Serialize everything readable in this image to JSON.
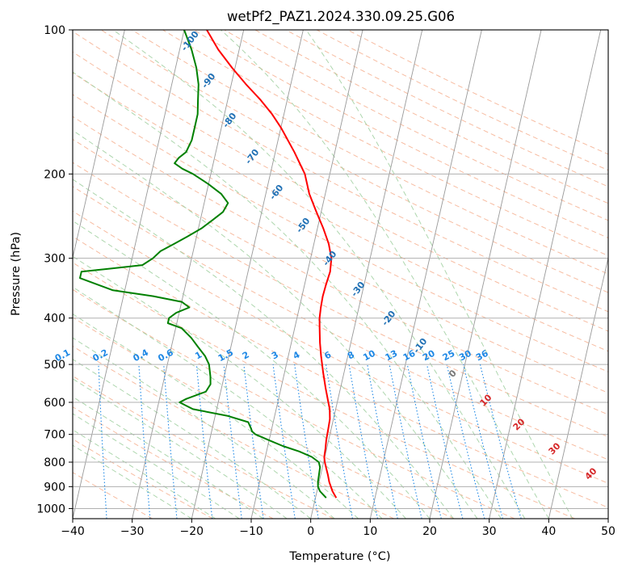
{
  "chart_data": {
    "type": "skew-t",
    "title": "wetPf2_PAZ1.2024.330.09.25.G06",
    "xlabel": "Temperature (°C)",
    "ylabel": "Pressure (hPa)",
    "xlim": [
      -40,
      50
    ],
    "ylim": [
      1050,
      100
    ],
    "y_scale": "log",
    "x_ticks": [
      -40,
      -30,
      -20,
      -10,
      0,
      10,
      20,
      30,
      40,
      50
    ],
    "y_ticks": [
      1000,
      900,
      800,
      700,
      600,
      500,
      400,
      300,
      200,
      100
    ],
    "grid": true,
    "colors": {
      "temperature": "#ff0000",
      "dewpoint": "#008000",
      "dry_adiabat": "#f4a582",
      "moist_adiabat": "#9fcf9f",
      "mixing_ratio": "#1e88e5",
      "isotherm": "#999999"
    },
    "temperature_profile": [
      {
        "p": 950,
        "t": 3.5
      },
      {
        "p": 920,
        "t": 2.6
      },
      {
        "p": 880,
        "t": 1.7
      },
      {
        "p": 850,
        "t": 1.2
      },
      {
        "p": 820,
        "t": 0.6
      },
      {
        "p": 800,
        "t": 0.2
      },
      {
        "p": 780,
        "t": -0.1
      },
      {
        "p": 750,
        "t": -0.2
      },
      {
        "p": 720,
        "t": -0.4
      },
      {
        "p": 680,
        "t": -0.5
      },
      {
        "p": 650,
        "t": -0.6
      },
      {
        "p": 620,
        "t": -1.0
      },
      {
        "p": 600,
        "t": -1.5
      },
      {
        "p": 560,
        "t": -2.5
      },
      {
        "p": 520,
        "t": -3.5
      },
      {
        "p": 480,
        "t": -4.5
      },
      {
        "p": 450,
        "t": -5.2
      },
      {
        "p": 420,
        "t": -5.8
      },
      {
        "p": 400,
        "t": -6.2
      },
      {
        "p": 380,
        "t": -6.4
      },
      {
        "p": 360,
        "t": -6.5
      },
      {
        "p": 340,
        "t": -6.4
      },
      {
        "p": 320,
        "t": -6.2
      },
      {
        "p": 300,
        "t": -6.5
      },
      {
        "p": 280,
        "t": -7.5
      },
      {
        "p": 260,
        "t": -9.0
      },
      {
        "p": 240,
        "t": -10.8
      },
      {
        "p": 220,
        "t": -12.7
      },
      {
        "p": 200,
        "t": -14.2
      },
      {
        "p": 180,
        "t": -16.8
      },
      {
        "p": 160,
        "t": -20.0
      },
      {
        "p": 150,
        "t": -22.0
      },
      {
        "p": 140,
        "t": -24.5
      },
      {
        "p": 130,
        "t": -27.5
      },
      {
        "p": 120,
        "t": -30.5
      },
      {
        "p": 110,
        "t": -33.5
      },
      {
        "p": 100,
        "t": -36.2
      }
    ],
    "dewpoint_profile": [
      {
        "p": 950,
        "td": 1.8
      },
      {
        "p": 920,
        "td": 0.5
      },
      {
        "p": 900,
        "td": 0.0
      },
      {
        "p": 880,
        "td": -0.2
      },
      {
        "p": 850,
        "td": -0.3
      },
      {
        "p": 820,
        "td": -0.4
      },
      {
        "p": 800,
        "td": -0.8
      },
      {
        "p": 780,
        "td": -2.2
      },
      {
        "p": 760,
        "td": -4.5
      },
      {
        "p": 740,
        "td": -7.5
      },
      {
        "p": 720,
        "td": -10.0
      },
      {
        "p": 700,
        "td": -12.5
      },
      {
        "p": 690,
        "td": -13.2
      },
      {
        "p": 680,
        "td": -13.5
      },
      {
        "p": 660,
        "td": -14.2
      },
      {
        "p": 640,
        "td": -18.0
      },
      {
        "p": 620,
        "td": -24.0
      },
      {
        "p": 600,
        "td": -26.5
      },
      {
        "p": 590,
        "td": -25.5
      },
      {
        "p": 570,
        "td": -22.5
      },
      {
        "p": 550,
        "td": -22.0
      },
      {
        "p": 530,
        "td": -22.3
      },
      {
        "p": 500,
        "td": -23.0
      },
      {
        "p": 480,
        "td": -24.0
      },
      {
        "p": 460,
        "td": -25.5
      },
      {
        "p": 440,
        "td": -27.0
      },
      {
        "p": 420,
        "td": -29.0
      },
      {
        "p": 410,
        "td": -31.5
      },
      {
        "p": 400,
        "td": -31.5
      },
      {
        "p": 390,
        "td": -30.5
      },
      {
        "p": 380,
        "td": -28.5
      },
      {
        "p": 370,
        "td": -30.0
      },
      {
        "p": 360,
        "td": -35.0
      },
      {
        "p": 350,
        "td": -42.0
      },
      {
        "p": 330,
        "td": -48.0
      },
      {
        "p": 320,
        "td": -48.0
      },
      {
        "p": 315,
        "td": -43.0
      },
      {
        "p": 310,
        "td": -38.0
      },
      {
        "p": 300,
        "td": -36.5
      },
      {
        "p": 290,
        "td": -35.5
      },
      {
        "p": 280,
        "td": -33.5
      },
      {
        "p": 270,
        "td": -31.5
      },
      {
        "p": 260,
        "td": -29.5
      },
      {
        "p": 250,
        "td": -28.0
      },
      {
        "p": 240,
        "td": -26.5
      },
      {
        "p": 230,
        "td": -26.0
      },
      {
        "p": 220,
        "td": -27.5
      },
      {
        "p": 210,
        "td": -30.0
      },
      {
        "p": 200,
        "td": -33.0
      },
      {
        "p": 195,
        "td": -35.0
      },
      {
        "p": 190,
        "td": -36.5
      },
      {
        "p": 185,
        "td": -36.0
      },
      {
        "p": 180,
        "td": -35.0
      },
      {
        "p": 170,
        "td": -34.5
      },
      {
        "p": 160,
        "td": -34.5
      },
      {
        "p": 150,
        "td": -34.5
      },
      {
        "p": 140,
        "td": -35.0
      },
      {
        "p": 130,
        "td": -35.5
      },
      {
        "p": 120,
        "td": -36.5
      },
      {
        "p": 110,
        "td": -38.0
      },
      {
        "p": 100,
        "td": -40.0
      }
    ],
    "dry_adiabat_labels": [
      "0",
      "10",
      "20",
      "30",
      "40"
    ],
    "moist_adiabat_labels": [
      "-100",
      "-90",
      "-80",
      "-70",
      "-60",
      "-50",
      "-40",
      "-30",
      "-20",
      "-10"
    ],
    "mixing_ratio_labels": [
      "0.1",
      "0.2",
      "0.4",
      "0.6",
      "1",
      "1.5",
      "2",
      "3",
      "4",
      "6",
      "8",
      "10",
      "13",
      "16",
      "20",
      "25",
      "30",
      "36"
    ]
  }
}
